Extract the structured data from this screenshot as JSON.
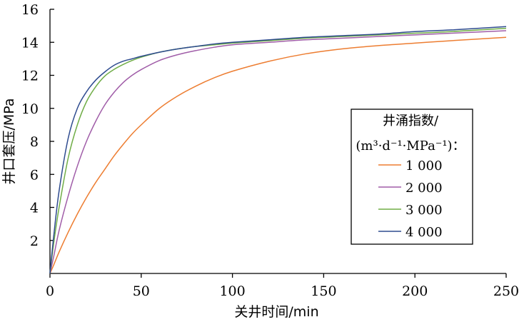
{
  "chart_data": {
    "type": "line",
    "title": "",
    "xlabel": "关井时间/min",
    "ylabel": "井口套压/MPa",
    "xlim": [
      0,
      250
    ],
    "ylim": [
      0,
      16
    ],
    "xticks": [
      "0",
      "50",
      "100",
      "150",
      "200",
      "250"
    ],
    "yticks": [
      "2",
      "4",
      "6",
      "8",
      "10",
      "12",
      "14",
      "16"
    ],
    "grid": false,
    "legend": {
      "position": "right",
      "title_line1": "井涌指数/",
      "title_line2": "(m³·d⁻¹·MPa⁻¹)："
    },
    "series": [
      {
        "name": "1 000",
        "color": "#ed7d31",
        "x": [
          0,
          2,
          5,
          10,
          15,
          20,
          25,
          30,
          35,
          40,
          45,
          50,
          60,
          70,
          80,
          90,
          100,
          120,
          140,
          160,
          180,
          200,
          220,
          250
        ],
        "y": [
          0,
          0.5,
          1.3,
          2.5,
          3.6,
          4.6,
          5.5,
          6.3,
          7.1,
          7.8,
          8.45,
          9.0,
          10.0,
          10.75,
          11.35,
          11.85,
          12.25,
          12.85,
          13.3,
          13.6,
          13.8,
          13.95,
          14.1,
          14.3
        ]
      },
      {
        "name": "2 000",
        "color": "#a05da8",
        "x": [
          0,
          2,
          5,
          10,
          15,
          20,
          25,
          30,
          35,
          40,
          45,
          50,
          60,
          70,
          80,
          90,
          100,
          120,
          140,
          160,
          180,
          200,
          220,
          250
        ],
        "y": [
          0,
          1.0,
          2.6,
          4.7,
          6.5,
          8.0,
          9.2,
          10.2,
          10.95,
          11.55,
          12.0,
          12.35,
          12.9,
          13.25,
          13.5,
          13.7,
          13.85,
          14.0,
          14.15,
          14.25,
          14.35,
          14.45,
          14.55,
          14.7
        ]
      },
      {
        "name": "3 000",
        "color": "#70ad47",
        "x": [
          0,
          2,
          5,
          10,
          15,
          20,
          25,
          30,
          35,
          40,
          45,
          50,
          60,
          70,
          80,
          90,
          100,
          120,
          140,
          160,
          180,
          200,
          220,
          250
        ],
        "y": [
          0,
          1.8,
          4.0,
          7.0,
          9.0,
          10.4,
          11.3,
          11.95,
          12.35,
          12.65,
          12.9,
          13.1,
          13.4,
          13.6,
          13.75,
          13.85,
          13.95,
          14.1,
          14.25,
          14.35,
          14.45,
          14.55,
          14.65,
          14.85
        ]
      },
      {
        "name": "4 000",
        "color": "#2e4b8f",
        "x": [
          0,
          2,
          5,
          10,
          15,
          20,
          25,
          30,
          35,
          40,
          45,
          50,
          60,
          70,
          80,
          90,
          100,
          120,
          140,
          160,
          180,
          200,
          220,
          250
        ],
        "y": [
          0,
          2.2,
          5.0,
          8.2,
          10.0,
          11.0,
          11.7,
          12.2,
          12.6,
          12.85,
          13.0,
          13.15,
          13.4,
          13.6,
          13.75,
          13.9,
          14.0,
          14.15,
          14.3,
          14.4,
          14.5,
          14.65,
          14.75,
          14.95
        ]
      }
    ]
  }
}
